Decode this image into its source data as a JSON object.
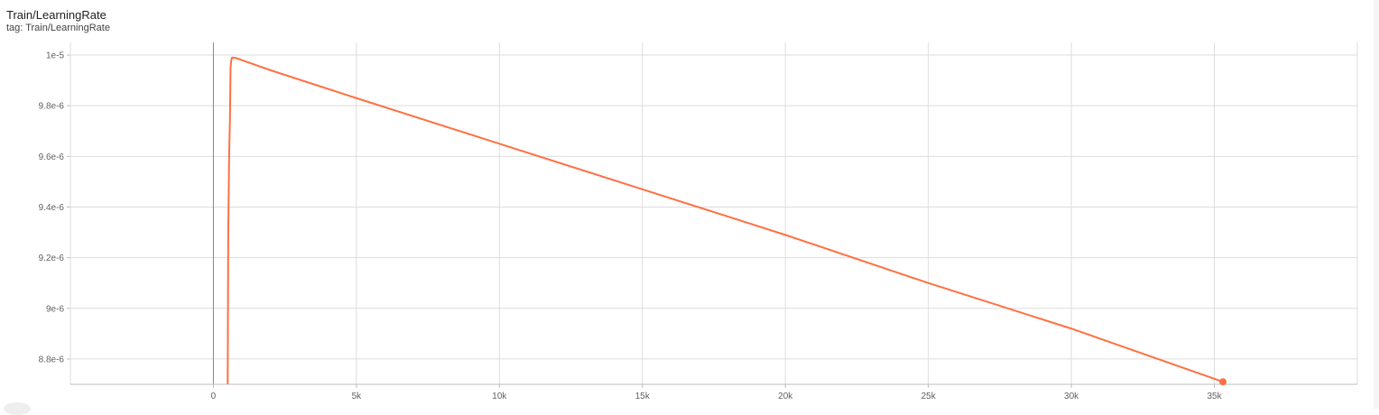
{
  "card": {
    "title": "Train/LearningRate",
    "subtitle": "tag: Train/LearningRate"
  },
  "colors": {
    "series": "#ff7043",
    "grid": "#dddddd"
  },
  "chart_data": {
    "type": "line",
    "title": "Train/LearningRate",
    "xlabel": "",
    "ylabel": "",
    "xlim": [
      -5000,
      40000
    ],
    "ylim": [
      8.7e-06,
      1.005e-05
    ],
    "grid": true,
    "x_ticks": [
      0,
      5000,
      10000,
      15000,
      20000,
      25000,
      30000,
      35000
    ],
    "x_tick_labels": [
      "0",
      "5k",
      "10k",
      "15k",
      "20k",
      "25k",
      "30k",
      "35k"
    ],
    "y_ticks": [
      8.8e-06,
      9e-06,
      9.2e-06,
      9.4e-06,
      9.6e-06,
      9.8e-06,
      1e-05
    ],
    "y_tick_labels": [
      "8.8e-6",
      "9e-6",
      "9.2e-6",
      "9.4e-6",
      "9.6e-6",
      "9.8e-6",
      "1e-5"
    ],
    "series": [
      {
        "x": [
          500,
          520,
          550,
          580,
          600,
          620,
          650,
          700,
          800,
          1000,
          2000,
          5000,
          10000,
          15000,
          20000,
          25000,
          30000,
          35300
        ],
        "y": [
          8.7e-06,
          9.3e-06,
          9.6e-06,
          9.75e-06,
          9.95e-06,
          9.975e-06,
          9.99e-06,
          9.99e-06,
          9.988e-06,
          9.98e-06,
          9.94e-06,
          9.83e-06,
          9.65e-06,
          9.47e-06,
          9.29e-06,
          9.1e-06,
          8.92e-06,
          8.71e-06
        ],
        "last_point": [
          35300,
          8.71e-06
        ]
      }
    ]
  }
}
